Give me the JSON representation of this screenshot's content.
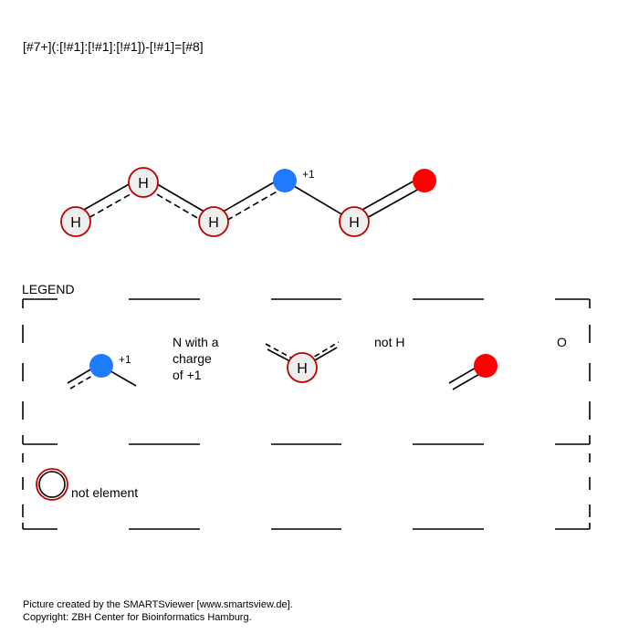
{
  "smarts": "[#7+](:[!#1]:[!#1]:[!#1])-[!#1]=[#8]",
  "molecule": {
    "atom_label": "H",
    "charge": "+1"
  },
  "legend": {
    "title": "LEGEND",
    "n_charge_label": "+1",
    "n_description_lines": [
      "N with a",
      "charge",
      "of +1"
    ],
    "not_h_atom_label": "H",
    "not_h_description": "not H",
    "o_description": "O",
    "not_element_description": "not element"
  },
  "colors": {
    "nitrogen": "#1e7bff",
    "oxygen": "#ff0000",
    "not_ring": "#c00000",
    "atom_fill": "#eeeeee",
    "line": "#000000"
  },
  "footer": {
    "line1": "Picture created by the SMARTSviewer [www.smartsview.de].",
    "line2": "Copyright: ZBH Center for Bioinformatics Hamburg."
  }
}
